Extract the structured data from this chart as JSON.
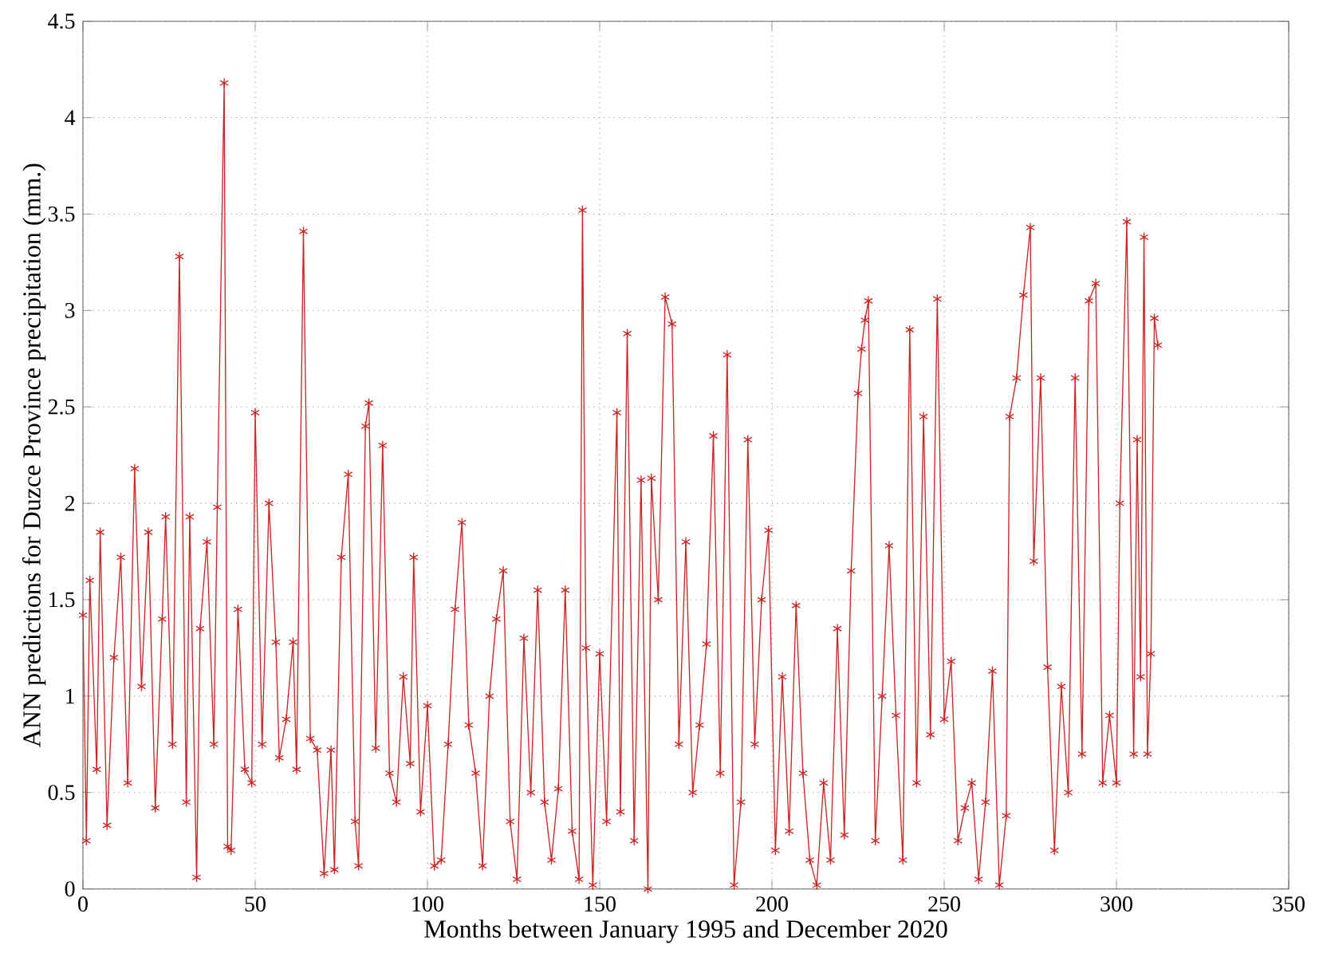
{
  "chart_data": {
    "type": "line",
    "xlabel": "Months between January 1995 and December 2020",
    "ylabel": "ANN predictions for Duzce Province precipitation (mm.)",
    "x": [
      0,
      1,
      2,
      4,
      5,
      7,
      9,
      11,
      13,
      15,
      17,
      19,
      21,
      23,
      24,
      26,
      28,
      30,
      31,
      33,
      34,
      36,
      38,
      39,
      41,
      42,
      43,
      45,
      47,
      49,
      50,
      52,
      54,
      56,
      57,
      59,
      61,
      62,
      64,
      66,
      68,
      70,
      72,
      73,
      75,
      77,
      79,
      80,
      82,
      83,
      85,
      87,
      89,
      91,
      93,
      95,
      96,
      98,
      100,
      102,
      104,
      106,
      108,
      110,
      112,
      114,
      116,
      118,
      120,
      122,
      124,
      126,
      128,
      130,
      132,
      134,
      136,
      138,
      140,
      142,
      144,
      145,
      146,
      148,
      150,
      152,
      155,
      156,
      158,
      160,
      162,
      164,
      165,
      167,
      169,
      171,
      173,
      175,
      177,
      179,
      181,
      183,
      185,
      187,
      189,
      191,
      193,
      195,
      197,
      199,
      201,
      203,
      205,
      207,
      209,
      211,
      213,
      215,
      217,
      219,
      221,
      223,
      225,
      226,
      227,
      228,
      230,
      232,
      234,
      236,
      238,
      240,
      242,
      244,
      246,
      248,
      250,
      252,
      254,
      256,
      258,
      260,
      262,
      264,
      266,
      268,
      269,
      271,
      273,
      275,
      276,
      278,
      280,
      282,
      284,
      286,
      288,
      290,
      292,
      294,
      296,
      298,
      300,
      301,
      303,
      305,
      306,
      307,
      308,
      309,
      310,
      311,
      312
    ],
    "values": [
      1.42,
      0.25,
      1.6,
      0.62,
      1.85,
      0.33,
      1.2,
      1.72,
      0.55,
      2.18,
      1.05,
      1.85,
      0.42,
      1.4,
      1.93,
      0.75,
      3.28,
      0.45,
      1.93,
      0.06,
      1.35,
      1.8,
      0.75,
      1.98,
      4.18,
      0.22,
      0.2,
      1.45,
      0.62,
      0.55,
      2.47,
      0.75,
      2.0,
      1.28,
      0.68,
      0.88,
      1.28,
      0.62,
      3.41,
      0.78,
      0.72,
      0.08,
      0.72,
      0.1,
      1.72,
      2.15,
      0.35,
      0.12,
      2.4,
      2.52,
      0.73,
      2.3,
      0.6,
      0.45,
      1.1,
      0.65,
      1.72,
      0.4,
      0.95,
      0.12,
      0.15,
      0.75,
      1.45,
      1.9,
      0.85,
      0.6,
      0.12,
      1.0,
      1.4,
      1.65,
      0.35,
      0.05,
      1.3,
      0.5,
      1.55,
      0.45,
      0.15,
      0.52,
      1.55,
      0.3,
      0.05,
      3.52,
      1.25,
      0.02,
      1.22,
      0.35,
      2.47,
      0.4,
      2.88,
      0.25,
      2.12,
      0.0,
      2.13,
      1.5,
      3.07,
      2.93,
      0.75,
      1.8,
      0.5,
      0.85,
      1.27,
      2.35,
      0.6,
      2.77,
      0.02,
      0.45,
      2.33,
      0.75,
      1.5,
      1.86,
      0.2,
      1.1,
      0.3,
      1.47,
      0.6,
      0.15,
      0.02,
      0.55,
      0.15,
      1.35,
      0.28,
      1.65,
      2.57,
      2.8,
      2.95,
      3.05,
      0.25,
      1.0,
      1.78,
      0.9,
      0.15,
      2.9,
      0.55,
      2.45,
      0.8,
      3.06,
      0.88,
      1.18,
      0.25,
      0.42,
      0.55,
      0.05,
      0.45,
      1.13,
      0.02,
      0.38,
      2.45,
      2.65,
      3.08,
      3.43,
      1.7,
      2.65,
      1.15,
      0.2,
      1.05,
      0.5,
      2.65,
      0.7,
      3.05,
      3.14,
      0.55,
      0.9,
      0.55,
      2.0,
      3.46,
      0.7,
      2.33,
      1.1,
      3.38,
      0.7,
      1.22,
      2.96,
      2.82
    ],
    "color": "#cc2222",
    "marker": "cross",
    "line_style": "solid",
    "grid": true,
    "xlim": [
      0,
      350
    ],
    "xticks": [
      0,
      50,
      100,
      150,
      200,
      250,
      300,
      350
    ],
    "ylim": [
      0,
      4.5
    ],
    "yticks": [
      0,
      0.5,
      1,
      1.5,
      2,
      2.5,
      3,
      3.5,
      4,
      4.5
    ]
  }
}
